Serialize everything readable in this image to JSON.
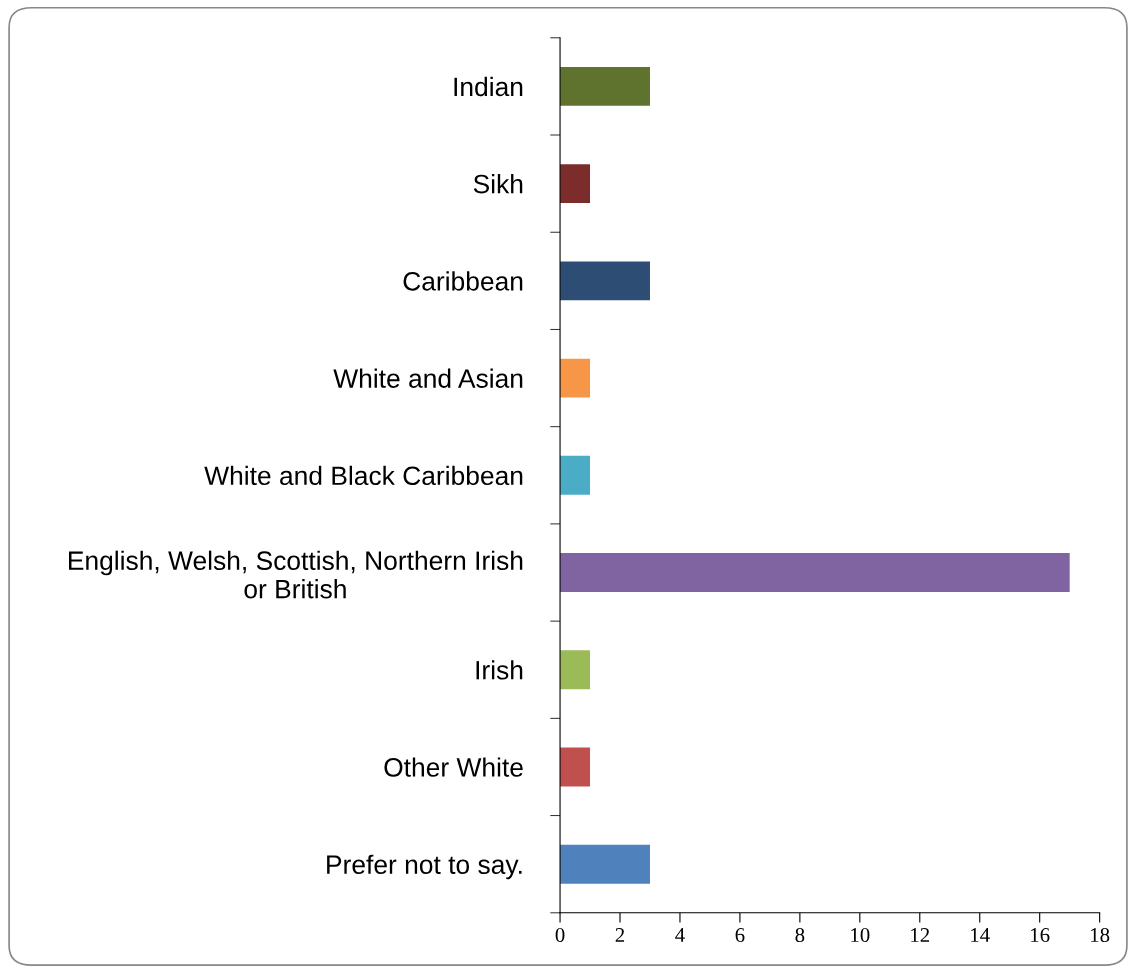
{
  "chart_data": {
    "type": "bar",
    "orientation": "horizontal",
    "categories": [
      "Indian",
      "Sikh",
      "Caribbean",
      "White and Asian",
      "White and Black Caribbean",
      "English, Welsh, Scottish, Northern Irish\nor British",
      "Irish",
      "Other White",
      "Prefer not to say."
    ],
    "values": [
      3,
      1,
      3,
      1,
      1,
      17,
      1,
      1,
      3
    ],
    "colors": [
      "#5f732f",
      "#7b2c2b",
      "#2e4d74",
      "#f79646",
      "#4bacc6",
      "#8064a2",
      "#9bbb59",
      "#c0504d",
      "#4f81bd"
    ],
    "xlim": [
      0,
      18
    ],
    "xticks": [
      0,
      2,
      4,
      6,
      8,
      10,
      12,
      14,
      16,
      18
    ],
    "grid": false,
    "legend": false
  }
}
